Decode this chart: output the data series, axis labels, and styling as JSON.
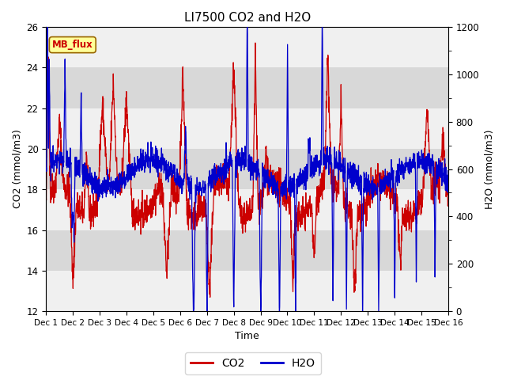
{
  "title": "LI7500 CO2 and H2O",
  "xlabel": "Time",
  "ylabel_left": "CO2 (mmol/m3)",
  "ylabel_right": "H2O (mmol/m3)",
  "ylim_left": [
    12,
    26
  ],
  "ylim_right": [
    0,
    1200
  ],
  "yticks_left": [
    12,
    14,
    16,
    18,
    20,
    22,
    24,
    26
  ],
  "yticks_right": [
    0,
    200,
    400,
    600,
    800,
    1000,
    1200
  ],
  "xtick_labels": [
    "Dec 1",
    "Dec 2",
    "Dec 3",
    "Dec 4",
    "Dec 5",
    "Dec 6",
    "Dec 7",
    "Dec 8",
    "Dec 9",
    "Dec 10",
    "Dec 11",
    "Dec 12",
    "Dec 13",
    "Dec 14",
    "Dec 15",
    "Dec 16"
  ],
  "co2_color": "#cc0000",
  "h2o_color": "#0000cc",
  "background_color": "#ffffff",
  "plot_bg_light": "#f0f0f0",
  "plot_bg_dark": "#d8d8d8",
  "annotation_text": "MB_flux",
  "annotation_color": "#cc0000",
  "annotation_bg": "#ffff99",
  "annotation_edge": "#996600",
  "num_points": 2000,
  "days": 15,
  "seed": 42
}
